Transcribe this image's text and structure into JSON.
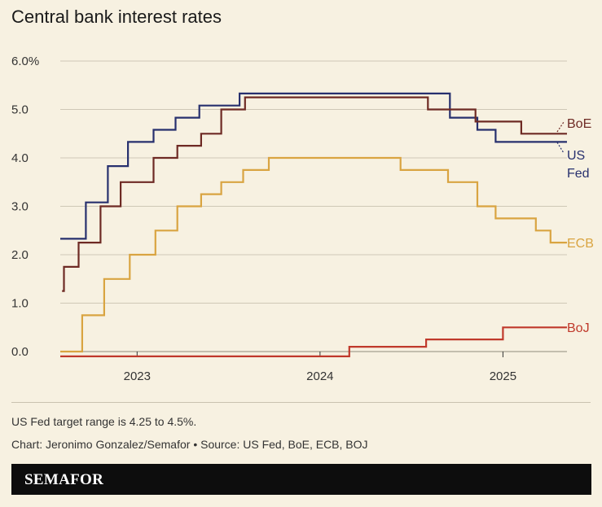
{
  "title": "Central bank interest rates",
  "note": "US Fed target range is 4.25 to 4.5%.",
  "credit": "Chart: Jeronimo Gonzalez/Semafor • Source: US Fed, BoE, ECB, BOJ",
  "brand": "SEMAFOR",
  "chart_data": {
    "type": "line",
    "step": true,
    "title": "Central bank interest rates",
    "xlabel": "",
    "ylabel": "",
    "xlim": [
      2022.58,
      2025.35
    ],
    "ylim": [
      0,
      6
    ],
    "y_ticks": [
      0,
      1,
      2,
      3,
      4,
      5,
      6
    ],
    "y_tick_labels": [
      "0.0",
      "1.0",
      "2.0",
      "3.0",
      "4.0",
      "5.0",
      "6.0%"
    ],
    "x_ticks": [
      2023,
      2024,
      2025
    ],
    "x_tick_labels": [
      "2023",
      "2024",
      "2025"
    ],
    "grid": "horizontal",
    "legend": "direct labels at line ends",
    "series": [
      {
        "name": "US Fed",
        "label_lines": [
          "US",
          "Fed"
        ],
        "color": "#27306e",
        "points": [
          [
            2022.58,
            2.33
          ],
          [
            2022.72,
            3.08
          ],
          [
            2022.84,
            3.83
          ],
          [
            2022.95,
            4.33
          ],
          [
            2023.09,
            4.58
          ],
          [
            2023.21,
            4.83
          ],
          [
            2023.34,
            5.08
          ],
          [
            2023.56,
            5.33
          ],
          [
            2024.71,
            4.83
          ],
          [
            2024.86,
            4.58
          ],
          [
            2024.96,
            4.33
          ],
          [
            2025.35,
            4.33
          ]
        ]
      },
      {
        "name": "BoE",
        "label_lines": [
          "BoE"
        ],
        "color": "#6e2a24",
        "points": [
          [
            2022.59,
            1.25
          ],
          [
            2022.6,
            1.75
          ],
          [
            2022.68,
            2.25
          ],
          [
            2022.8,
            3.0
          ],
          [
            2022.91,
            3.5
          ],
          [
            2023.09,
            4.0
          ],
          [
            2023.22,
            4.25
          ],
          [
            2023.35,
            4.5
          ],
          [
            2023.46,
            5.0
          ],
          [
            2023.59,
            5.25
          ],
          [
            2024.59,
            5.0
          ],
          [
            2024.85,
            4.75
          ],
          [
            2025.1,
            4.5
          ],
          [
            2025.35,
            4.5
          ]
        ]
      },
      {
        "name": "ECB",
        "label_lines": [
          "ECB"
        ],
        "color": "#d9a441",
        "points": [
          [
            2022.58,
            0.0
          ],
          [
            2022.7,
            0.75
          ],
          [
            2022.82,
            1.5
          ],
          [
            2022.96,
            2.0
          ],
          [
            2023.1,
            2.5
          ],
          [
            2023.22,
            3.0
          ],
          [
            2023.35,
            3.25
          ],
          [
            2023.46,
            3.5
          ],
          [
            2023.58,
            3.75
          ],
          [
            2023.72,
            4.0
          ],
          [
            2024.44,
            3.75
          ],
          [
            2024.7,
            3.5
          ],
          [
            2024.86,
            3.0
          ],
          [
            2024.96,
            2.75
          ],
          [
            2025.18,
            2.5
          ],
          [
            2025.26,
            2.25
          ],
          [
            2025.35,
            2.25
          ]
        ]
      },
      {
        "name": "BoJ",
        "label_lines": [
          "BoJ"
        ],
        "color": "#c0392b",
        "points": [
          [
            2022.58,
            -0.1
          ],
          [
            2024.16,
            0.1
          ],
          [
            2024.58,
            0.25
          ],
          [
            2025.0,
            0.5
          ],
          [
            2025.35,
            0.5
          ]
        ]
      }
    ]
  }
}
